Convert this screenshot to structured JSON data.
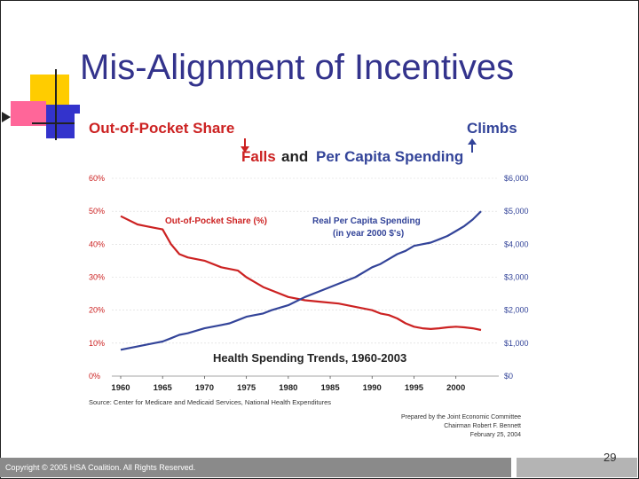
{
  "slide": {
    "title": "Mis-Alignment of Incentives",
    "page_number": "29",
    "copyright": "Copyright © 2005 HSA Coalition. All Rights Reserved."
  },
  "headline": {
    "left": "Out-of-Pocket Share",
    "falls": "Falls",
    "and": "and",
    "spending": "Per Capita Spending",
    "climbs": "Climbs"
  },
  "chart_data": {
    "type": "line",
    "title": "Health Spending Trends, 1960-2003",
    "x": [
      1960,
      1962,
      1963,
      1964,
      1965,
      1966,
      1967,
      1968,
      1970,
      1972,
      1973,
      1974,
      1975,
      1976,
      1977,
      1978,
      1980,
      1982,
      1984,
      1986,
      1988,
      1990,
      1991,
      1992,
      1993,
      1994,
      1995,
      1996,
      1997,
      1998,
      1999,
      2000,
      2001,
      2002,
      2003
    ],
    "series": [
      {
        "name": "Out-of-Pocket Share (%)",
        "axis": "left",
        "color": "#cc2222",
        "values": [
          48.5,
          46,
          45.5,
          45,
          44.5,
          40,
          37,
          36,
          35,
          33,
          32.5,
          32,
          30,
          28.5,
          27,
          26,
          24,
          23,
          22.5,
          22,
          21,
          20,
          19,
          18.5,
          17.5,
          16,
          15,
          14.5,
          14.3,
          14.5,
          14.8,
          15,
          14.8,
          14.5,
          14
        ]
      },
      {
        "name": "Real Per Capita Spending (in year 2000 $'s)",
        "axis": "right",
        "color": "#334499",
        "values": [
          800,
          900,
          950,
          1000,
          1050,
          1150,
          1250,
          1300,
          1450,
          1550,
          1600,
          1700,
          1800,
          1850,
          1900,
          2000,
          2150,
          2400,
          2600,
          2800,
          3000,
          3300,
          3400,
          3550,
          3700,
          3800,
          3950,
          4000,
          4050,
          4150,
          4250,
          4400,
          4550,
          4750,
          5000
        ]
      }
    ],
    "xlim": [
      1960,
      2003
    ],
    "x_ticks": [
      "1960",
      "1965",
      "1970",
      "1975",
      "1980",
      "1985",
      "1990",
      "1995",
      "2000"
    ],
    "y_left_ticks": [
      "0%",
      "10%",
      "20%",
      "30%",
      "40%",
      "50%",
      "60%"
    ],
    "y_left_range": [
      0,
      60
    ],
    "y_right_ticks": [
      "$0",
      "$1,000",
      "$2,000",
      "$3,000",
      "$4,000",
      "$5,000",
      "$6,000"
    ],
    "y_right_range": [
      0,
      6000
    ],
    "grid": true,
    "annotations": {
      "oop_label": "Out-of-Pocket Share (%)",
      "spending_label_1": "Real Per Capita Spending",
      "spending_label_2": "(in year 2000 $'s)"
    },
    "source": "Source: Center for Medicare and Medicaid Services, National Health Expenditures",
    "credit": [
      "Prepared by the Joint Economic Committee",
      "Chairman Robert F. Bennett",
      "February 25, 2004"
    ]
  },
  "colors": {
    "title": "#33338c",
    "red": "#cc2222",
    "blue": "#334499",
    "deco_yellow": "#ffcc00",
    "deco_blue": "#3333cc",
    "deco_pink": "#ff6699"
  }
}
